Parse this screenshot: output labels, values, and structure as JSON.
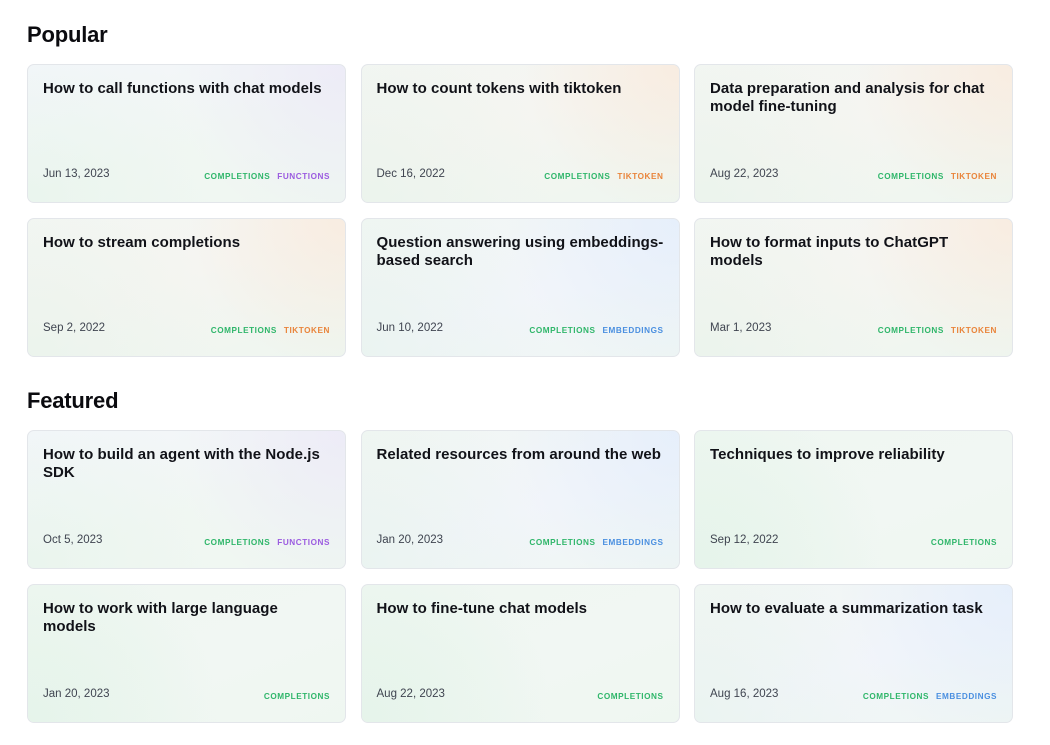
{
  "colors": {
    "completions": "#2fb66a",
    "functions": "#9b5be0",
    "tiktoken": "#e9843a",
    "embeddings": "#4a8fe0"
  },
  "sections": [
    {
      "title": "Popular",
      "cards": [
        {
          "title": "How to call functions with chat models",
          "date": "Jun 13, 2023",
          "theme": "green",
          "tags": [
            {
              "label": "COMPLETIONS",
              "kind": "completions"
            },
            {
              "label": "FUNCTIONS",
              "kind": "functions"
            }
          ]
        },
        {
          "title": "How to count tokens with tiktoken",
          "date": "Dec 16, 2022",
          "theme": "orange",
          "tags": [
            {
              "label": "COMPLETIONS",
              "kind": "completions"
            },
            {
              "label": "TIKTOKEN",
              "kind": "tiktoken"
            }
          ]
        },
        {
          "title": "Data preparation and analysis for chat model fine-tuning",
          "date": "Aug 22, 2023",
          "theme": "orange",
          "tags": [
            {
              "label": "COMPLETIONS",
              "kind": "completions"
            },
            {
              "label": "TIKTOKEN",
              "kind": "tiktoken"
            }
          ]
        },
        {
          "title": "How to stream completions",
          "date": "Sep 2, 2022",
          "theme": "orange",
          "tags": [
            {
              "label": "COMPLETIONS",
              "kind": "completions"
            },
            {
              "label": "TIKTOKEN",
              "kind": "tiktoken"
            }
          ]
        },
        {
          "title": "Question answering using embeddings-based search",
          "date": "Jun 10, 2022",
          "theme": "blue",
          "tags": [
            {
              "label": "COMPLETIONS",
              "kind": "completions"
            },
            {
              "label": "EMBEDDINGS",
              "kind": "embeddings"
            }
          ]
        },
        {
          "title": "How to format inputs to ChatGPT models",
          "date": "Mar 1, 2023",
          "theme": "orange",
          "tags": [
            {
              "label": "COMPLETIONS",
              "kind": "completions"
            },
            {
              "label": "TIKTOKEN",
              "kind": "tiktoken"
            }
          ]
        }
      ]
    },
    {
      "title": "Featured",
      "cards": [
        {
          "title": "How to build an agent with the Node.js SDK",
          "date": "Oct 5, 2023",
          "theme": "green",
          "tags": [
            {
              "label": "COMPLETIONS",
              "kind": "completions"
            },
            {
              "label": "FUNCTIONS",
              "kind": "functions"
            }
          ]
        },
        {
          "title": "Related resources from around the web",
          "date": "Jan 20, 2023",
          "theme": "blue",
          "tags": [
            {
              "label": "COMPLETIONS",
              "kind": "completions"
            },
            {
              "label": "EMBEDDINGS",
              "kind": "embeddings"
            }
          ]
        },
        {
          "title": "Techniques to improve reliability",
          "date": "Sep 12, 2022",
          "theme": "mint",
          "tags": [
            {
              "label": "COMPLETIONS",
              "kind": "completions"
            }
          ]
        },
        {
          "title": "How to work with large language models",
          "date": "Jan 20, 2023",
          "theme": "mint",
          "tags": [
            {
              "label": "COMPLETIONS",
              "kind": "completions"
            }
          ]
        },
        {
          "title": "How to fine-tune chat models",
          "date": "Aug 22, 2023",
          "theme": "mint",
          "tags": [
            {
              "label": "COMPLETIONS",
              "kind": "completions"
            }
          ]
        },
        {
          "title": "How to evaluate a summarization task",
          "date": "Aug 16, 2023",
          "theme": "blue",
          "tags": [
            {
              "label": "COMPLETIONS",
              "kind": "completions"
            },
            {
              "label": "EMBEDDINGS",
              "kind": "embeddings"
            }
          ]
        }
      ]
    }
  ]
}
